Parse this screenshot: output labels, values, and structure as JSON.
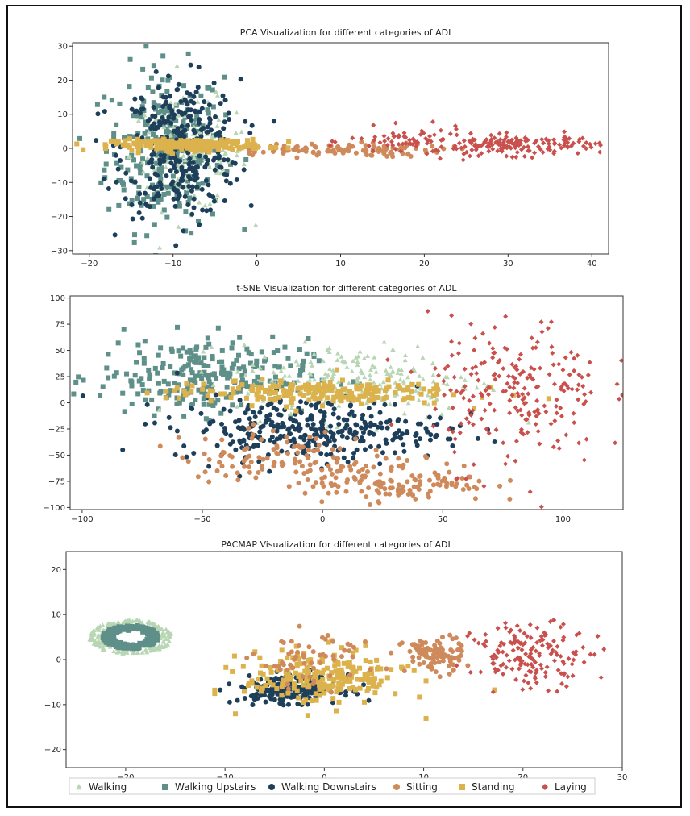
{
  "colors": {
    "Walking": "#b9d6b4",
    "Walking Upstairs": "#5e8f88",
    "Walking Downstairs": "#1e3f5a",
    "Sitting": "#cf8a5c",
    "Standing": "#dcb24c",
    "Laying": "#c9504c"
  },
  "legend": [
    {
      "label": "Walking",
      "marker": "triangle"
    },
    {
      "label": "Walking Upstairs",
      "marker": "square"
    },
    {
      "label": "Walking Downstairs",
      "marker": "circle"
    },
    {
      "label": "Sitting",
      "marker": "circle"
    },
    {
      "label": "Standing",
      "marker": "square"
    },
    {
      "label": "Laying",
      "marker": "diamond"
    }
  ],
  "chart_data": [
    {
      "type": "scatter",
      "title": "PCA Visualization for different categories of ADL",
      "xlim": [
        -22,
        42
      ],
      "ylim": [
        -31,
        31
      ],
      "xticks": [
        -20,
        -10,
        0,
        10,
        20,
        30,
        40
      ],
      "yticks": [
        -30,
        -20,
        -10,
        0,
        10,
        20,
        30
      ],
      "xlabel": "",
      "ylabel": "",
      "clusters": [
        {
          "series": "Walking Upstairs",
          "cx": -11,
          "cy": 0,
          "sx": 3.5,
          "sy": 12,
          "n": 260
        },
        {
          "series": "Walking",
          "cx": -8,
          "cy": -2,
          "sx": 3.5,
          "sy": 8,
          "n": 140
        },
        {
          "series": "Walking Downstairs",
          "cx": -9,
          "cy": 0,
          "sx": 3.5,
          "sy": 10,
          "n": 340
        },
        {
          "series": "Sitting",
          "cx": 8,
          "cy": -0.5,
          "sx": 7,
          "sy": 1,
          "n": 120
        },
        {
          "series": "Standing",
          "cx": -8,
          "cy": 1,
          "sx": 4.5,
          "sy": 0.8,
          "n": 230
        },
        {
          "series": "Laying",
          "cx": 31,
          "cy": 1,
          "sx": 5,
          "sy": 1.5,
          "n": 160
        },
        {
          "series": "Laying",
          "cx": 18,
          "cy": 2,
          "sx": 3.5,
          "sy": 2,
          "n": 60
        }
      ]
    },
    {
      "type": "scatter",
      "title": "t-SNE Visualization for different categories of ADL",
      "xlim": [
        -105,
        125
      ],
      "ylim": [
        -102,
        102
      ],
      "xticks": [
        -100,
        -50,
        0,
        50,
        100
      ],
      "yticks": [
        -100,
        -75,
        -50,
        -25,
        0,
        25,
        50,
        75,
        100
      ],
      "xlabel": "",
      "ylabel": "",
      "clusters": [
        {
          "series": "Walking Upstairs",
          "cx": -50,
          "cy": 25,
          "sx": 22,
          "sy": 18,
          "n": 260
        },
        {
          "series": "Walking",
          "cx": 15,
          "cy": 20,
          "sx": 25,
          "sy": 18,
          "n": 230
        },
        {
          "series": "Walking Downstairs",
          "cx": -5,
          "cy": -25,
          "sx": 28,
          "sy": 15,
          "n": 330
        },
        {
          "series": "Standing",
          "cx": -5,
          "cy": 10,
          "sx": 30,
          "sy": 6,
          "n": 200
        },
        {
          "series": "Sitting",
          "cx": 30,
          "cy": -75,
          "sx": 20,
          "sy": 10,
          "n": 140
        },
        {
          "series": "Sitting",
          "cx": -20,
          "cy": -50,
          "sx": 20,
          "sy": 12,
          "n": 100
        },
        {
          "series": "Laying",
          "cx": 80,
          "cy": 10,
          "sx": 18,
          "sy": 35,
          "n": 220
        }
      ]
    },
    {
      "type": "scatter",
      "title": "PACMAP Visualization for different categories of ADL",
      "xlim": [
        -26,
        30
      ],
      "ylim": [
        -24,
        24
      ],
      "xticks": [
        -20,
        -10,
        0,
        10,
        20,
        30
      ],
      "yticks": [
        -20,
        -10,
        0,
        10,
        20
      ],
      "xlabel": "",
      "ylabel": "",
      "clusters": [
        {
          "series": "Walking",
          "cx": -19.5,
          "cy": 5,
          "sx": 4.2,
          "sy": 3.8,
          "n": 200,
          "shape": "ring"
        },
        {
          "series": "Walking Upstairs",
          "cx": -19.5,
          "cy": 5,
          "sx": 2.8,
          "sy": 2.6,
          "n": 220,
          "shape": "ring"
        },
        {
          "series": "Walking Downstairs",
          "cx": -3.5,
          "cy": -6.5,
          "sx": 2.5,
          "sy": 1.5,
          "n": 200
        },
        {
          "series": "Standing",
          "cx": 0,
          "cy": -4,
          "sx": 4,
          "sy": 3,
          "n": 220
        },
        {
          "series": "Sitting",
          "cx": 11,
          "cy": 1,
          "sx": 1.5,
          "sy": 2,
          "n": 90
        },
        {
          "series": "Sitting",
          "cx": -1,
          "cy": 0,
          "sx": 3,
          "sy": 3,
          "n": 60
        },
        {
          "series": "Laying",
          "cx": 21,
          "cy": 1,
          "sx": 3,
          "sy": 3.5,
          "n": 160
        }
      ]
    }
  ]
}
